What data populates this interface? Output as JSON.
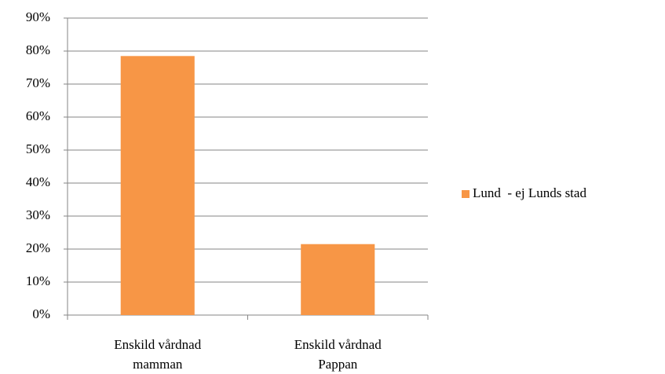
{
  "chart_data": {
    "type": "bar",
    "categories": [
      "Enskild vårdnad mamman",
      "Enskild vårdnad Pappan"
    ],
    "series": [
      {
        "name": "Lund  - ej Lunds stad",
        "color": "#f79646",
        "values": [
          78.5,
          21.5
        ]
      }
    ],
    "ylim": [
      0,
      90
    ],
    "yticks": [
      {
        "value": 0,
        "label": "0%"
      },
      {
        "value": 10,
        "label": "10%"
      },
      {
        "value": 20,
        "label": "20%"
      },
      {
        "value": 30,
        "label": "30%"
      },
      {
        "value": 40,
        "label": "40%"
      },
      {
        "value": 50,
        "label": "50%"
      },
      {
        "value": 60,
        "label": "60%"
      },
      {
        "value": 70,
        "label": "70%"
      },
      {
        "value": 80,
        "label": "80%"
      },
      {
        "value": 90,
        "label": "90%"
      }
    ],
    "grid": true,
    "legend": "right"
  }
}
